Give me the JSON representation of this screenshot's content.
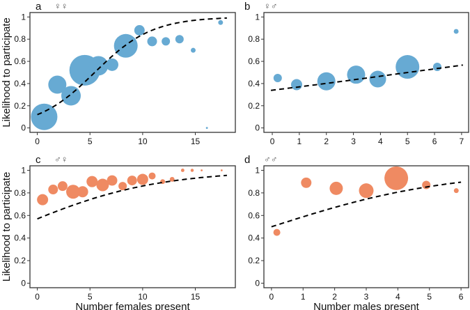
{
  "chart_data": [
    {
      "type": "scatter",
      "panel": "a",
      "symbol": "♀♀",
      "color": "#67aad3",
      "xlabel": "",
      "ylabel": "Likelihood to participate",
      "xlim": [
        -0.7,
        18.8
      ],
      "ylim": [
        -0.04,
        1.04
      ],
      "xticks": [
        0,
        5,
        10,
        15
      ],
      "yticks": [
        0,
        0.2,
        0.4,
        0.6,
        0.8,
        1
      ],
      "ytick_labels": [
        "0",
        "0.2",
        "0.4",
        "0.6",
        "0.8",
        "1"
      ],
      "points": [
        {
          "x": 0.65,
          "y": 0.1,
          "n": 361
        },
        {
          "x": 1.9,
          "y": 0.39,
          "n": 169
        },
        {
          "x": 3.2,
          "y": 0.29,
          "n": 196
        },
        {
          "x": 4.5,
          "y": 0.52,
          "n": 484
        },
        {
          "x": 5.8,
          "y": 0.56,
          "n": 196
        },
        {
          "x": 7.1,
          "y": 0.57,
          "n": 81
        },
        {
          "x": 8.4,
          "y": 0.74,
          "n": 289
        },
        {
          "x": 9.7,
          "y": 0.88,
          "n": 56
        },
        {
          "x": 10.9,
          "y": 0.78,
          "n": 49
        },
        {
          "x": 12.2,
          "y": 0.78,
          "n": 36
        },
        {
          "x": 13.5,
          "y": 0.8,
          "n": 36
        },
        {
          "x": 14.8,
          "y": 0.7,
          "n": 12
        },
        {
          "x": 16.1,
          "y": 0.0,
          "n": 2
        },
        {
          "x": 17.4,
          "y": 0.95,
          "n": 12
        }
      ],
      "fit": {
        "type": "logistic",
        "intercept": -2.0,
        "slope": 0.367,
        "x_range": [
          0,
          18
        ]
      }
    },
    {
      "type": "scatter",
      "panel": "b",
      "symbol": "♀♂",
      "color": "#67aad3",
      "xlabel": "",
      "ylabel": "",
      "xlim": [
        -0.31,
        7.26
      ],
      "ylim": [
        -0.04,
        1.04
      ],
      "xticks": [
        0,
        1,
        2,
        3,
        4,
        5,
        6,
        7
      ],
      "yticks": [
        0,
        0.2,
        0.4,
        0.6,
        0.8,
        1
      ],
      "ytick_labels": [
        "0",
        "0.2",
        "0.4",
        "0.6",
        "0.8",
        "1"
      ],
      "points": [
        {
          "x": 0.2,
          "y": 0.45,
          "n": 36
        },
        {
          "x": 0.9,
          "y": 0.39,
          "n": 64
        },
        {
          "x": 2.0,
          "y": 0.42,
          "n": 169
        },
        {
          "x": 3.1,
          "y": 0.48,
          "n": 169
        },
        {
          "x": 3.9,
          "y": 0.44,
          "n": 144
        },
        {
          "x": 5.0,
          "y": 0.55,
          "n": 289
        },
        {
          "x": 6.1,
          "y": 0.55,
          "n": 36
        },
        {
          "x": 6.8,
          "y": 0.87,
          "n": 12
        }
      ],
      "fit": {
        "type": "logistic",
        "intercept": -0.663,
        "slope": 0.132,
        "x_range": [
          -0.05,
          7.05
        ]
      }
    },
    {
      "type": "scatter",
      "panel": "c",
      "symbol": "♂♀",
      "color": "#ef8a62",
      "xlabel": "Number females present",
      "ylabel": "Likelihood to participate",
      "xlim": [
        -0.7,
        18.8
      ],
      "ylim": [
        -0.04,
        1.04
      ],
      "xticks": [
        0,
        5,
        10,
        15
      ],
      "yticks": [
        0,
        0.2,
        0.4,
        0.6,
        0.8,
        1
      ],
      "ytick_labels": [
        "0",
        "0.2",
        "0.4",
        "0.6",
        "0.8",
        "1"
      ],
      "points": [
        {
          "x": 0.5,
          "y": 0.74,
          "n": 64
        },
        {
          "x": 1.5,
          "y": 0.83,
          "n": 49
        },
        {
          "x": 2.4,
          "y": 0.86,
          "n": 49
        },
        {
          "x": 3.4,
          "y": 0.81,
          "n": 100
        },
        {
          "x": 4.3,
          "y": 0.81,
          "n": 64
        },
        {
          "x": 5.2,
          "y": 0.9,
          "n": 64
        },
        {
          "x": 6.2,
          "y": 0.87,
          "n": 81
        },
        {
          "x": 7.1,
          "y": 0.91,
          "n": 56
        },
        {
          "x": 8.1,
          "y": 0.86,
          "n": 36
        },
        {
          "x": 9.0,
          "y": 0.91,
          "n": 49
        },
        {
          "x": 10.0,
          "y": 0.92,
          "n": 64
        },
        {
          "x": 10.9,
          "y": 0.95,
          "n": 25
        },
        {
          "x": 11.9,
          "y": 0.9,
          "n": 12
        },
        {
          "x": 12.8,
          "y": 0.92,
          "n": 12
        },
        {
          "x": 13.8,
          "y": 1.0,
          "n": 6
        },
        {
          "x": 14.7,
          "y": 1.0,
          "n": 5
        },
        {
          "x": 15.6,
          "y": 1.0,
          "n": 2
        },
        {
          "x": 17.5,
          "y": 1.0,
          "n": 2
        }
      ],
      "fit": {
        "type": "logistic",
        "intercept": 0.282,
        "slope": 0.154,
        "x_range": [
          0,
          18
        ]
      }
    },
    {
      "type": "scatter",
      "panel": "d",
      "symbol": "♂♂",
      "color": "#ef8a62",
      "xlabel": "Number males present",
      "ylabel": "",
      "xlim": [
        -0.24,
        6.24
      ],
      "ylim": [
        -0.04,
        1.04
      ],
      "xticks": [
        0,
        1,
        2,
        3,
        4,
        5,
        6
      ],
      "yticks": [
        0,
        0.2,
        0.4,
        0.6,
        0.8,
        1
      ],
      "ytick_labels": [
        "0",
        "0.2",
        "0.4",
        "0.6",
        "0.8",
        "1"
      ],
      "points": [
        {
          "x": 0.17,
          "y": 0.45,
          "n": 25
        },
        {
          "x": 1.1,
          "y": 0.89,
          "n": 56
        },
        {
          "x": 2.05,
          "y": 0.84,
          "n": 90
        },
        {
          "x": 3.0,
          "y": 0.82,
          "n": 110
        },
        {
          "x": 3.95,
          "y": 0.93,
          "n": 289
        },
        {
          "x": 4.9,
          "y": 0.87,
          "n": 36
        },
        {
          "x": 5.85,
          "y": 0.82,
          "n": 12
        }
      ],
      "fit": {
        "type": "logistic",
        "intercept": 0.0,
        "slope": 0.357,
        "x_range": [
          0,
          6
        ]
      }
    }
  ]
}
